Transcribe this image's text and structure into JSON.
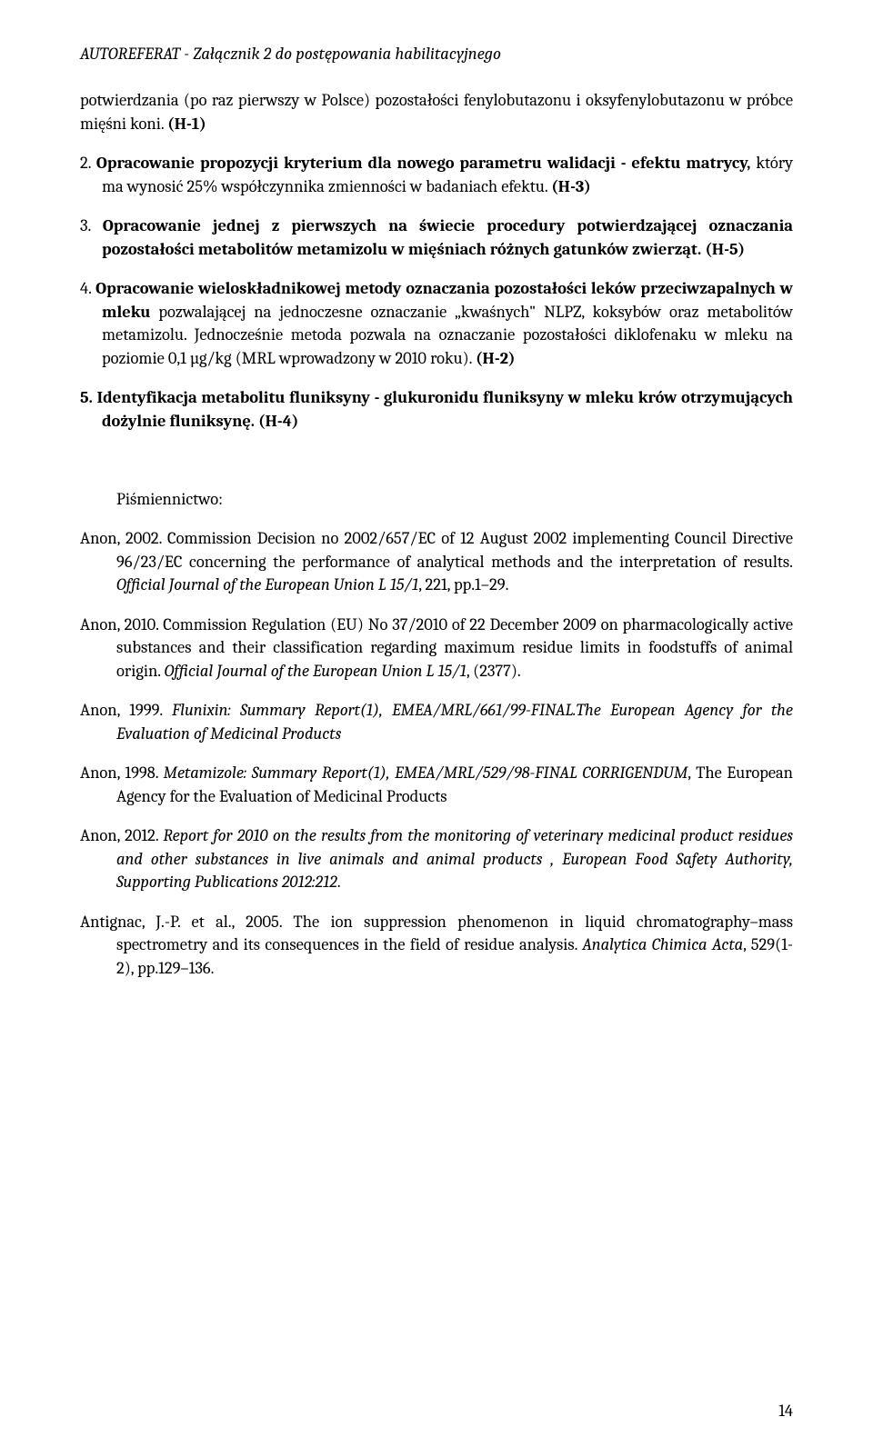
{
  "header": "AUTOREFERAT - Załącznik 2 do postępowania habilitacyjnego",
  "intro": {
    "line1": "potwierdzania (po raz pierwszy w Polsce) pozostałości fenylobutazonu i oksyfenylobutazonu w próbce mięśni koni. ",
    "h1": "(H-1)"
  },
  "items": {
    "i2": {
      "num": "2. ",
      "t1": "Opracowanie propozycji kryterium dla nowego parametru walidacji  - efektu matrycy,",
      "t2": " który ma wynosić 25% współczynnika zmienności w badaniach efektu. ",
      "h": "(H-3)"
    },
    "i3": {
      "num": "3. ",
      "t1": "Opracowanie jednej z pierwszych na świecie procedury potwierdzającej oznaczania pozostałości metabolitów metamizolu w mięśniach różnych gatunków zwierząt. (H-5)"
    },
    "i4": {
      "num": "4. ",
      "t1": "Opracowanie wieloskładnikowej metody oznaczania pozostałości leków przeciwzapalnych w mleku",
      "t2": " pozwalającej na jednoczesne oznaczanie „kwaśnych\" NLPZ, koksybów oraz metabolitów metamizolu. Jednocześnie metoda pozwala na oznaczanie pozostałości diklofenaku w mleku na poziomie 0,1 µg/kg (MRL wprowadzony w 2010 roku). ",
      "h": "(H-2)"
    },
    "i5": {
      "num": "5. ",
      "t1": "Identyfikacja metabolitu fluniksyny  - glukuronidu fluniksyny w mleku krów otrzymujących dożylnie fluniksynę. (H-4)"
    }
  },
  "pisme_label": "Piśmiennictwo:",
  "refs": {
    "r1": {
      "a": "Anon, 2002. Commission Decision no 2002/657/EC of 12 August 2002 implementing Council Directive 96/23/EC concerning the performance of analytical methods and the interpretation of results. ",
      "b": "Official Journal of the European Union L 15/1",
      "c": ", 221, pp.1–29."
    },
    "r2": {
      "a": "Anon, 2010. Commission Regulation (EU) No 37/2010 of 22 December 2009 on pharmacologically active substances and their classification regarding maximum residue limits in foodstuffs of animal origin. ",
      "b": "Official Journal of the European Union L 15/1",
      "c": ", (2377)."
    },
    "r3": {
      "a": "Anon, 1999. ",
      "b": "Flunixin: Summary Report(1), EMEA/MRL/661/99-FINAL.The European Agency for the Evaluation of Medicinal Products"
    },
    "r4": {
      "a": "Anon, 1998. ",
      "b": "Metamizole: Summary Report(1), EMEA/MRL/529/98-FINAL CORRIGENDUM",
      "c": ", The European  Agency for the Evaluation of Medicinal Products"
    },
    "r5": {
      "a": "Anon, 2012. ",
      "b": "Report for 2010 on the results from the monitoring of veterinary medicinal product residues and other substances in live animals and animal products , European Food Safety Authority, Supporting Publications 2012:212",
      "c": "."
    },
    "r6": {
      "a": "Antignac, J.-P. et al., 2005. The ion suppression phenomenon in liquid chromatography–mass spectrometry and its consequences in the field of residue analysis. ",
      "b": "Analytica Chimica Acta",
      "c": ", 529(1-2), pp.129–136."
    }
  },
  "page_number": "14"
}
